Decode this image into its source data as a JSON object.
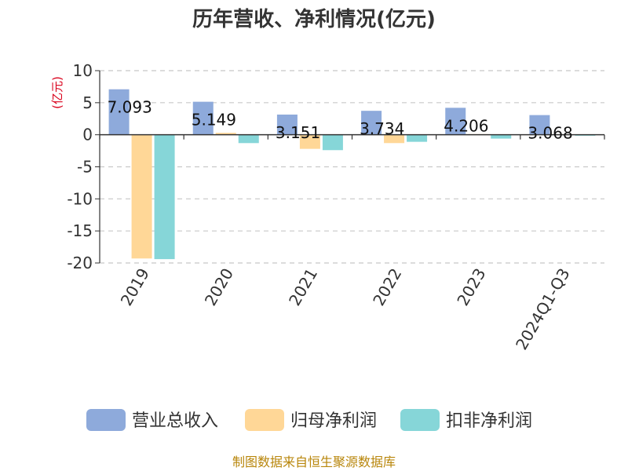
{
  "chart_data": {
    "type": "bar",
    "title": "历年营收、净利情况(亿元)",
    "unit_label": "(亿元)",
    "categories": [
      "2019",
      "2020",
      "2021",
      "2022",
      "2023",
      "2024Q1-Q3"
    ],
    "series": [
      {
        "name": "营业总收入",
        "color": "#8eaadb",
        "values": [
          7.093,
          5.149,
          3.151,
          3.734,
          4.206,
          3.068
        ]
      },
      {
        "name": "归母净利润",
        "color": "#ffd797",
        "values": [
          -19.3,
          0.3,
          -2.2,
          -1.3,
          0.1,
          0.05
        ]
      },
      {
        "name": "扣非净利润",
        "color": "#86d6d8",
        "values": [
          -19.4,
          -1.3,
          -2.4,
          -1.1,
          -0.6,
          -0.15
        ]
      }
    ],
    "data_labels": [
      "7.093",
      "5.149",
      "3.151",
      "3.734",
      "4.206",
      "3.068"
    ],
    "ylim": [
      -20,
      10
    ],
    "yticks": [
      10,
      5,
      0,
      -5,
      -10,
      -15,
      -20
    ],
    "grid": true,
    "legend_position": "bottom"
  },
  "source_text": "制图数据来自恒生聚源数据库"
}
